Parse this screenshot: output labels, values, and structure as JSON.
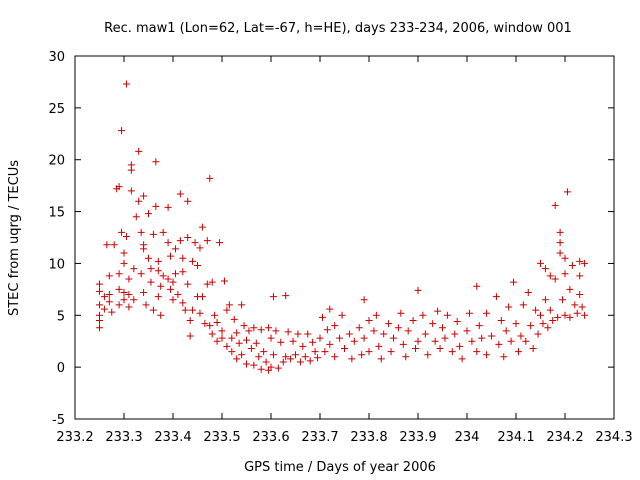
{
  "chart_data": {
    "type": "scatter",
    "title": "Rec. maw1 (Lon=62, Lat=-67, h=HE), days 233-234, 2006, window 001",
    "xlabel": "GPS time / Days of year 2006",
    "ylabel": "STEC from uqrg / TECUs",
    "xlim": [
      233.2,
      234.3
    ],
    "ylim": [
      -5,
      30
    ],
    "xticks": [
      233.2,
      233.3,
      233.4,
      233.5,
      233.6,
      233.7,
      233.8,
      233.9,
      234.0,
      234.1,
      234.2,
      234.3
    ],
    "xtick_labels": [
      "233.2",
      "233.3",
      "233.4",
      "233.5",
      "233.6",
      "233.7",
      "233.8",
      "233.9",
      "234",
      "234.1",
      "234.2",
      "234.3"
    ],
    "yticks": [
      -5,
      0,
      5,
      10,
      15,
      20,
      25,
      30
    ],
    "ytick_labels": [
      "-5",
      "0",
      "5",
      "10",
      "15",
      "20",
      "25",
      "30"
    ],
    "grid": false,
    "legend": "none",
    "marker": "plus",
    "color": "#cc0000",
    "points": [
      [
        233.25,
        8.0
      ],
      [
        233.25,
        7.3
      ],
      [
        233.25,
        6.0
      ],
      [
        233.25,
        5.0
      ],
      [
        233.25,
        4.5
      ],
      [
        233.25,
        3.8
      ],
      [
        233.26,
        6.8
      ],
      [
        233.26,
        5.6
      ],
      [
        233.265,
        11.8
      ],
      [
        233.27,
        8.8
      ],
      [
        233.27,
        7.0
      ],
      [
        233.27,
        6.3
      ],
      [
        233.275,
        5.3
      ],
      [
        233.28,
        11.8
      ],
      [
        233.285,
        17.2
      ],
      [
        233.29,
        17.4
      ],
      [
        233.29,
        9.0
      ],
      [
        233.29,
        7.5
      ],
      [
        233.29,
        6.0
      ],
      [
        233.295,
        22.8
      ],
      [
        233.295,
        13.0
      ],
      [
        233.3,
        11.0
      ],
      [
        233.3,
        10.0
      ],
      [
        233.3,
        7.2
      ],
      [
        233.3,
        6.5
      ],
      [
        233.305,
        27.3
      ],
      [
        233.305,
        12.6
      ],
      [
        233.31,
        8.5
      ],
      [
        233.31,
        7.0
      ],
      [
        233.31,
        5.8
      ],
      [
        233.315,
        19.5
      ],
      [
        233.315,
        19.0
      ],
      [
        233.315,
        17.0
      ],
      [
        233.32,
        9.5
      ],
      [
        233.32,
        6.5
      ],
      [
        233.325,
        14.5
      ],
      [
        233.33,
        20.8
      ],
      [
        233.33,
        16.0
      ],
      [
        233.335,
        13.0
      ],
      [
        233.335,
        9.0
      ],
      [
        233.34,
        16.5
      ],
      [
        233.34,
        11.8
      ],
      [
        233.34,
        11.4
      ],
      [
        233.34,
        7.2
      ],
      [
        233.345,
        6.0
      ],
      [
        233.35,
        14.8
      ],
      [
        233.35,
        10.5
      ],
      [
        233.355,
        9.5
      ],
      [
        233.355,
        8.2
      ],
      [
        233.36,
        12.8
      ],
      [
        233.36,
        5.5
      ],
      [
        233.365,
        19.8
      ],
      [
        233.365,
        15.5
      ],
      [
        233.37,
        10.2
      ],
      [
        233.37,
        9.3
      ],
      [
        233.37,
        6.8
      ],
      [
        233.375,
        7.8
      ],
      [
        233.375,
        5.0
      ],
      [
        233.38,
        13.0
      ],
      [
        233.38,
        8.8
      ],
      [
        233.39,
        15.4
      ],
      [
        233.39,
        12.0
      ],
      [
        233.39,
        8.5
      ],
      [
        233.395,
        10.7
      ],
      [
        233.395,
        7.5
      ],
      [
        233.4,
        8.2
      ],
      [
        233.4,
        6.5
      ],
      [
        233.405,
        11.4
      ],
      [
        233.405,
        9.0
      ],
      [
        233.41,
        7.0
      ],
      [
        233.415,
        16.7
      ],
      [
        233.415,
        12.2
      ],
      [
        233.42,
        10.5
      ],
      [
        233.42,
        9.2
      ],
      [
        233.42,
        6.2
      ],
      [
        233.425,
        5.5
      ],
      [
        233.43,
        16.0
      ],
      [
        233.43,
        12.5
      ],
      [
        233.43,
        8.0
      ],
      [
        233.435,
        4.5
      ],
      [
        233.435,
        3.0
      ],
      [
        233.44,
        10.2
      ],
      [
        233.44,
        5.5
      ],
      [
        233.445,
        12.0
      ],
      [
        233.45,
        9.8
      ],
      [
        233.45,
        6.8
      ],
      [
        233.455,
        11.5
      ],
      [
        233.455,
        5.2
      ],
      [
        233.46,
        13.5
      ],
      [
        233.46,
        6.8
      ],
      [
        233.465,
        4.2
      ],
      [
        233.47,
        12.2
      ],
      [
        233.47,
        8.0
      ],
      [
        233.475,
        18.2
      ],
      [
        233.475,
        4.0
      ],
      [
        233.48,
        8.2
      ],
      [
        233.48,
        3.2
      ],
      [
        233.485,
        5.0
      ],
      [
        233.49,
        4.3
      ],
      [
        233.49,
        2.5
      ],
      [
        233.495,
        12.0
      ],
      [
        233.5,
        3.5
      ],
      [
        233.5,
        2.8
      ],
      [
        233.505,
        8.3
      ],
      [
        233.51,
        5.5
      ],
      [
        233.51,
        2.0
      ],
      [
        233.515,
        6.0
      ],
      [
        233.52,
        2.8
      ],
      [
        233.52,
        1.5
      ],
      [
        233.525,
        4.6
      ],
      [
        233.53,
        3.3
      ],
      [
        233.53,
        0.8
      ],
      [
        233.535,
        2.3
      ],
      [
        233.54,
        6.0
      ],
      [
        233.54,
        1.2
      ],
      [
        233.545,
        4.0
      ],
      [
        233.55,
        2.6
      ],
      [
        233.55,
        0.3
      ],
      [
        233.555,
        3.5
      ],
      [
        233.56,
        1.8
      ],
      [
        233.565,
        3.8
      ],
      [
        233.565,
        0.2
      ],
      [
        233.57,
        2.3
      ],
      [
        233.575,
        1.0
      ],
      [
        233.58,
        3.6
      ],
      [
        233.58,
        -0.2
      ],
      [
        233.585,
        1.5
      ],
      [
        233.59,
        0.5
      ],
      [
        233.595,
        3.8
      ],
      [
        233.595,
        -0.3
      ],
      [
        233.6,
        2.8
      ],
      [
        233.6,
        0.0
      ],
      [
        233.605,
        6.8
      ],
      [
        233.605,
        1.2
      ],
      [
        233.61,
        3.5
      ],
      [
        233.615,
        -0.1
      ],
      [
        233.62,
        2.4
      ],
      [
        233.625,
        0.5
      ],
      [
        233.63,
        6.9
      ],
      [
        233.63,
        1.0
      ],
      [
        233.635,
        3.4
      ],
      [
        233.64,
        0.8
      ],
      [
        233.645,
        2.5
      ],
      [
        233.65,
        1.2
      ],
      [
        233.655,
        3.2
      ],
      [
        233.66,
        0.5
      ],
      [
        233.665,
        2.0
      ],
      [
        233.67,
        1.0
      ],
      [
        233.675,
        3.2
      ],
      [
        233.68,
        0.6
      ],
      [
        233.685,
        2.4
      ],
      [
        233.69,
        1.5
      ],
      [
        233.695,
        0.9
      ],
      [
        233.7,
        2.8
      ],
      [
        233.705,
        4.8
      ],
      [
        233.71,
        1.5
      ],
      [
        233.715,
        3.6
      ],
      [
        233.72,
        5.6
      ],
      [
        233.72,
        2.2
      ],
      [
        233.73,
        4.0
      ],
      [
        233.73,
        1.0
      ],
      [
        233.74,
        2.8
      ],
      [
        233.745,
        5.0
      ],
      [
        233.75,
        1.8
      ],
      [
        233.76,
        3.2
      ],
      [
        233.765,
        0.8
      ],
      [
        233.77,
        2.5
      ],
      [
        233.78,
        3.8
      ],
      [
        233.785,
        1.2
      ],
      [
        233.79,
        6.5
      ],
      [
        233.79,
        2.8
      ],
      [
        233.8,
        4.5
      ],
      [
        233.8,
        1.5
      ],
      [
        233.81,
        3.5
      ],
      [
        233.815,
        5.0
      ],
      [
        233.82,
        2.0
      ],
      [
        233.825,
        0.8
      ],
      [
        233.83,
        3.2
      ],
      [
        233.84,
        4.2
      ],
      [
        233.845,
        1.5
      ],
      [
        233.85,
        2.8
      ],
      [
        233.86,
        3.8
      ],
      [
        233.865,
        5.2
      ],
      [
        233.87,
        2.2
      ],
      [
        233.875,
        1.0
      ],
      [
        233.88,
        3.5
      ],
      [
        233.89,
        4.5
      ],
      [
        233.895,
        1.8
      ],
      [
        233.9,
        7.4
      ],
      [
        233.9,
        2.5
      ],
      [
        233.91,
        5.0
      ],
      [
        233.915,
        3.2
      ],
      [
        233.92,
        1.2
      ],
      [
        233.93,
        4.2
      ],
      [
        233.935,
        2.5
      ],
      [
        233.94,
        5.4
      ],
      [
        233.945,
        1.8
      ],
      [
        233.95,
        3.8
      ],
      [
        233.955,
        2.8
      ],
      [
        233.96,
        5.0
      ],
      [
        233.97,
        1.5
      ],
      [
        233.975,
        3.2
      ],
      [
        233.98,
        4.4
      ],
      [
        233.985,
        2.0
      ],
      [
        233.99,
        0.8
      ],
      [
        234.0,
        3.5
      ],
      [
        234.005,
        5.2
      ],
      [
        234.01,
        2.5
      ],
      [
        234.02,
        7.8
      ],
      [
        234.02,
        1.5
      ],
      [
        234.025,
        4.0
      ],
      [
        234.03,
        2.8
      ],
      [
        234.04,
        5.2
      ],
      [
        234.04,
        1.2
      ],
      [
        234.05,
        3.0
      ],
      [
        234.06,
        6.8
      ],
      [
        234.065,
        2.2
      ],
      [
        234.07,
        4.5
      ],
      [
        234.075,
        1.0
      ],
      [
        234.08,
        3.5
      ],
      [
        234.085,
        5.8
      ],
      [
        234.09,
        2.5
      ],
      [
        234.095,
        8.2
      ],
      [
        234.1,
        4.2
      ],
      [
        234.105,
        1.5
      ],
      [
        234.11,
        3.0
      ],
      [
        234.115,
        6.0
      ],
      [
        234.12,
        2.5
      ],
      [
        234.125,
        7.2
      ],
      [
        234.13,
        4.0
      ],
      [
        234.135,
        1.8
      ],
      [
        234.14,
        5.5
      ],
      [
        234.145,
        3.2
      ],
      [
        234.15,
        10.0
      ],
      [
        234.15,
        5.0
      ],
      [
        234.155,
        4.2
      ],
      [
        234.16,
        9.5
      ],
      [
        234.16,
        6.5
      ],
      [
        234.165,
        3.8
      ],
      [
        234.17,
        8.8
      ],
      [
        234.17,
        5.5
      ],
      [
        234.175,
        4.5
      ],
      [
        234.18,
        15.6
      ],
      [
        234.18,
        8.5
      ],
      [
        234.185,
        4.8
      ],
      [
        234.19,
        13.0
      ],
      [
        234.19,
        12.0
      ],
      [
        234.19,
        11.0
      ],
      [
        234.195,
        6.5
      ],
      [
        234.2,
        10.5
      ],
      [
        234.2,
        9.0
      ],
      [
        234.2,
        5.0
      ],
      [
        234.205,
        16.9
      ],
      [
        234.21,
        7.5
      ],
      [
        234.21,
        4.8
      ],
      [
        234.215,
        9.8
      ],
      [
        234.22,
        6.0
      ],
      [
        234.225,
        5.2
      ],
      [
        234.23,
        10.2
      ],
      [
        234.23,
        8.8
      ],
      [
        234.23,
        7.0
      ],
      [
        234.235,
        5.8
      ],
      [
        234.24,
        10.0
      ],
      [
        234.24,
        5.0
      ]
    ]
  }
}
